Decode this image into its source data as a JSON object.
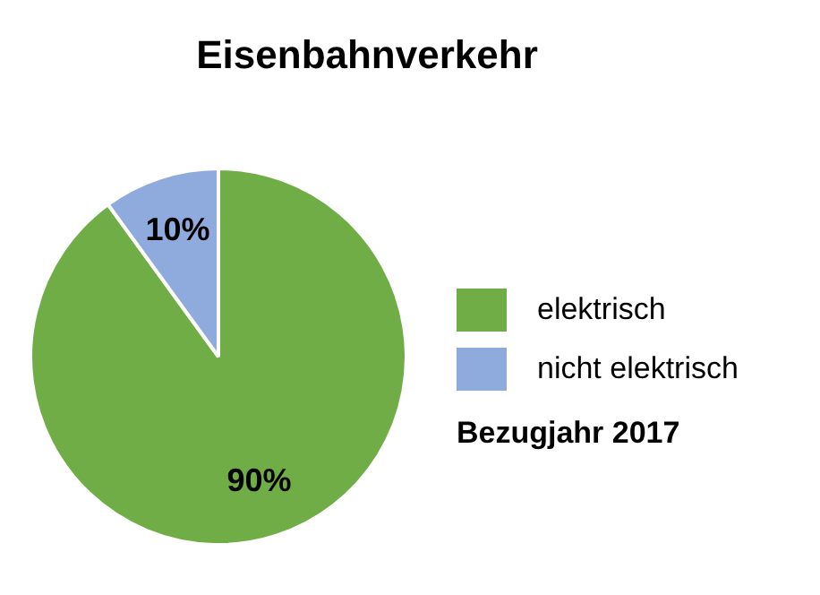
{
  "chart_data": {
    "type": "pie",
    "title": "Eisenbahnverkehr",
    "categories": [
      "elektrisch",
      "nicht elektrisch"
    ],
    "values": [
      90,
      10
    ],
    "colors": [
      "#70ad47",
      "#8faadc"
    ],
    "value_labels": [
      "90%",
      "10%"
    ],
    "legend": "right",
    "annotations": [
      "Bezugjahr 2017"
    ]
  }
}
